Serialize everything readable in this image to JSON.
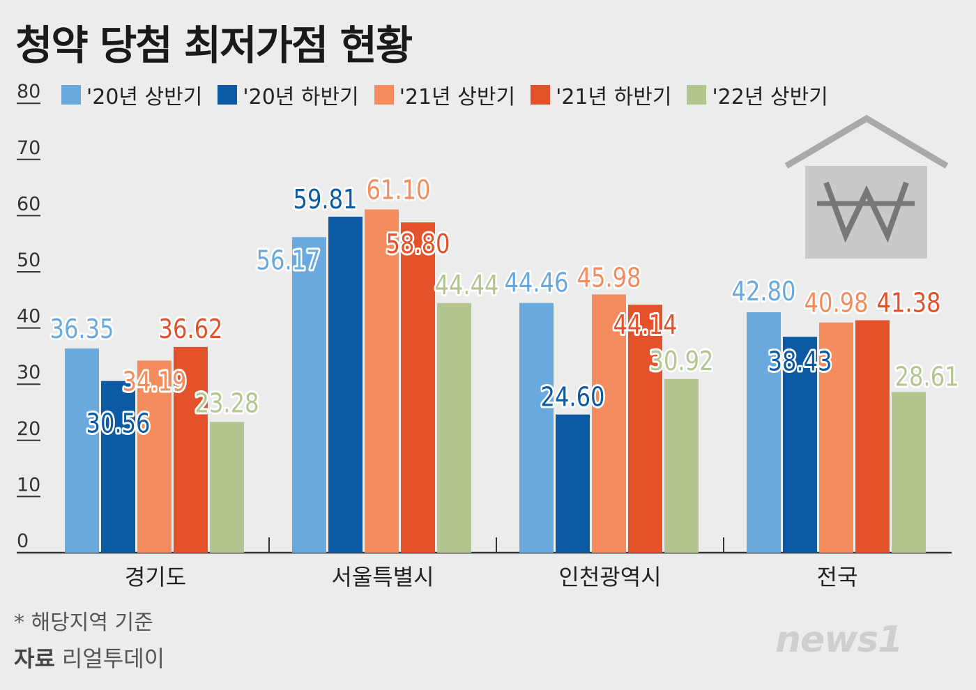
{
  "title": "청약 당첨 최저가점 현황",
  "chart_data": {
    "type": "bar",
    "title": "청약 당첨 최저가점 현황",
    "categories": [
      "경기도",
      "서울특별시",
      "인천광역시",
      "전국"
    ],
    "series": [
      {
        "name": "'20년 상반기",
        "color": "#6aa9dd",
        "values": [
          36.35,
          56.17,
          44.46,
          42.8
        ]
      },
      {
        "name": "'20년 하반기",
        "color": "#0b5aa3",
        "values": [
          30.56,
          59.81,
          24.6,
          38.43
        ]
      },
      {
        "name": "'21년 상반기",
        "color": "#f48c5e",
        "values": [
          34.19,
          61.1,
          45.98,
          40.98
        ]
      },
      {
        "name": "'21년 하반기",
        "color": "#e4522b",
        "values": [
          36.62,
          58.8,
          44.14,
          41.38
        ]
      },
      {
        "name": "'22년 상반기",
        "color": "#b3c68f",
        "values": [
          23.28,
          44.44,
          30.92,
          28.61
        ]
      }
    ],
    "yticks": [
      0,
      10,
      20,
      30,
      40,
      50,
      60,
      70,
      80
    ],
    "ylim": [
      0,
      80
    ],
    "legend": "top",
    "xlabel": "",
    "ylabel": ""
  },
  "footnote": "* 해당지역 기준",
  "source_label": "자료",
  "source": "리얼투데이",
  "logo": "news1"
}
